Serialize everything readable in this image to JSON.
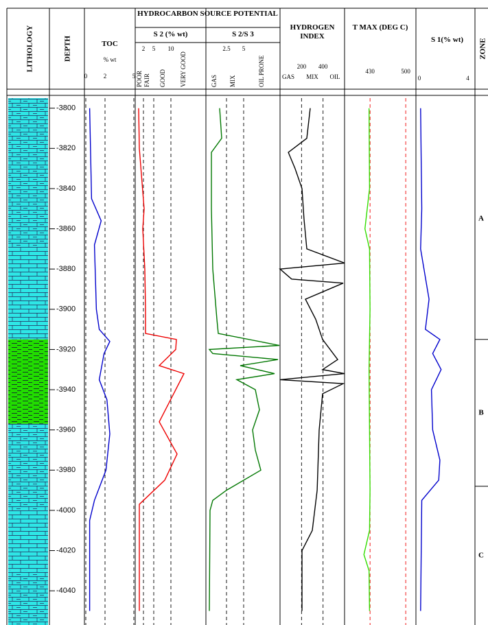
{
  "chart_data": {
    "type": "well-log",
    "depth_title": "DEPTH",
    "ylim": [
      -3795,
      -4057
    ],
    "yticks": [
      -3800,
      -3820,
      -3840,
      -3860,
      -3880,
      -3900,
      -3920,
      -3940,
      -3960,
      -3980,
      -4000,
      -4020,
      -4040
    ],
    "lithology": {
      "title": "LITHOLOGY",
      "intervals": [
        {
          "top": -3795,
          "base": -3870,
          "pattern": "shaly",
          "color": "#2ee6e6"
        },
        {
          "top": -3870,
          "base": -3915,
          "pattern": "brick",
          "color": "#2ee6e6"
        },
        {
          "top": -3915,
          "base": -3957,
          "pattern": "shale",
          "color": "#22dd00"
        },
        {
          "top": -3957,
          "base": -4000,
          "pattern": "shaly",
          "color": "#2ee6e6"
        },
        {
          "top": -4000,
          "base": -4030,
          "pattern": "brick",
          "color": "#2ee6e6"
        },
        {
          "top": -4030,
          "base": -4057,
          "pattern": "shaly",
          "color": "#2ee6e6"
        }
      ]
    },
    "group_title": "HYDROCARBON SOURCE POTENTIAL",
    "tracks": [
      {
        "title": "TOC",
        "unit": "% wt",
        "xlim": [
          0,
          5
        ],
        "xticks": [
          0,
          2,
          5
        ],
        "grid": true,
        "grid_color": "#000",
        "color": "#0000cc",
        "depth": [
          -3800,
          -3845,
          -3856,
          -3868,
          -3900,
          -3910,
          -3916,
          -3922,
          -3935,
          -3945,
          -3962,
          -3980,
          -3995,
          -4005,
          -4050
        ],
        "values": [
          0.4,
          0.6,
          1.6,
          0.9,
          1.1,
          1.4,
          2.5,
          1.9,
          1.4,
          2.2,
          2.5,
          2.1,
          0.9,
          0.4,
          0.4
        ]
      },
      {
        "title": "S 2 (% wt)",
        "xlim": [
          0,
          20
        ],
        "xticks": [
          2,
          5,
          10
        ],
        "grid": true,
        "grid_color": "#000",
        "color": "#ee0000",
        "classes": [
          "POOR",
          "FAIR",
          "GOOD",
          "VERY GOOD"
        ],
        "depth": [
          -3800,
          -3820,
          -3850,
          -3860,
          -3880,
          -3900,
          -3912,
          -3915,
          -3920,
          -3928,
          -3932,
          -3956,
          -3972,
          -3985,
          -3997,
          -4050
        ],
        "values": [
          0.6,
          0.8,
          2.2,
          1.8,
          2.4,
          2.6,
          2.6,
          11.6,
          11.4,
          6.6,
          13.8,
          6.6,
          11.8,
          8.2,
          0.8,
          0.8
        ]
      },
      {
        "title": "S 2/S 3",
        "xlim": [
          0,
          10
        ],
        "xticks": [
          2.5,
          5
        ],
        "grid": true,
        "grid_color": "#000",
        "color": "#007700",
        "classes": [
          "GAS",
          "MIX",
          "OIL PRONE"
        ],
        "depth": [
          -3800,
          -3815,
          -3822,
          -3850,
          -3880,
          -3905,
          -3912,
          -3918,
          -3920,
          -3922,
          -3925,
          -3928,
          -3932,
          -3935,
          -3940,
          -3950,
          -3960,
          -3970,
          -3980,
          -3990,
          -3995,
          -4000,
          -4050
        ],
        "values": [
          1.5,
          1.8,
          0.3,
          0.3,
          0.5,
          1.1,
          1.3,
          10.2,
          0,
          0.5,
          10,
          4.5,
          9.5,
          4,
          6.7,
          7.3,
          6.3,
          6.7,
          7.5,
          2.5,
          0.5,
          0.1,
          0
        ]
      },
      {
        "title": "HYDROGEN INDEX",
        "xlim": [
          0,
          600
        ],
        "xticks": [
          200,
          400
        ],
        "grid": true,
        "grid_color": "#000",
        "color": "#000000",
        "classes": [
          "GAS",
          "MIX",
          "OIL"
        ],
        "depth": [
          -3800,
          -3815,
          -3822,
          -3830,
          -3840,
          -3855,
          -3870,
          -3877,
          -3880,
          -3885,
          -3887,
          -3895,
          -3905,
          -3915,
          -3925,
          -3930,
          -3932,
          -3935,
          -3937,
          -3942,
          -3960,
          -3990,
          -4010,
          -4020,
          -4050
        ],
        "values": [
          281,
          249,
          77,
          140,
          204,
          223,
          249,
          600,
          0,
          108,
          587,
          236,
          332,
          396,
          536,
          396,
          600,
          0,
          587,
          396,
          364,
          345,
          300,
          204,
          204
        ]
      },
      {
        "title": "T MAX (DEG C)",
        "xlim": [
          380,
          520
        ],
        "xticks": [
          430,
          500
        ],
        "grid": true,
        "grid_color": "#ee0000",
        "color": "#33dd00",
        "depth": [
          -3800,
          -3840,
          -3860,
          -3870,
          -3900,
          -3930,
          -3960,
          -3990,
          -4010,
          -4022,
          -4030,
          -4050
        ],
        "values": [
          428,
          429,
          420,
          429,
          430,
          428,
          429,
          430,
          429,
          418,
          428,
          429
        ]
      },
      {
        "title": "S 1(% wt)",
        "xlim": [
          0,
          4.4
        ],
        "xticks": [
          0,
          4
        ],
        "grid": false,
        "color": "#0000cc",
        "depth": [
          -3800,
          -3850,
          -3870,
          -3895,
          -3910,
          -3915,
          -3922,
          -3930,
          -3940,
          -3960,
          -3975,
          -3985,
          -3995,
          -4050
        ],
        "values": [
          0.1,
          0.2,
          0.1,
          0.8,
          0.5,
          1.7,
          1.1,
          1.8,
          1.0,
          1.1,
          1.7,
          1.6,
          0.2,
          0.1
        ]
      }
    ],
    "zones": {
      "title": "ZONE",
      "items": [
        {
          "name": "A",
          "top": -3795,
          "base": -3915
        },
        {
          "name": "B",
          "top": -3915,
          "base": -3988
        },
        {
          "name": "C",
          "top": -3988,
          "base": -4057
        }
      ]
    }
  }
}
